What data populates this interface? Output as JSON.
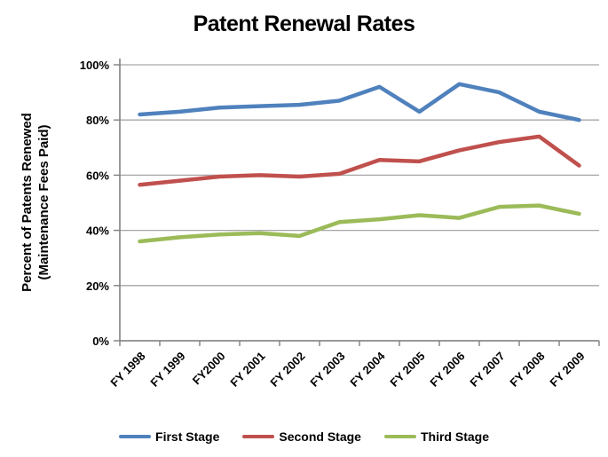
{
  "chart_data": {
    "type": "line",
    "title": "Patent Renewal Rates",
    "xlabel": "",
    "ylabel": "Percent of Patents Renewed (Maintenance Fees Paid)",
    "ylabel_lines": [
      "Percent of Patents Renewed",
      "(Maintenance Fees Paid)"
    ],
    "categories": [
      "FY 1998",
      "FY 1999",
      "FY2000",
      "FY 2001",
      "FY 2002",
      "FY 2003",
      "FY 2004",
      "FY 2005",
      "FY 2006",
      "FY 2007",
      "FY 2008",
      "FY 2009"
    ],
    "series": [
      {
        "name": "First Stage",
        "color": "#4F81BD",
        "values": [
          82,
          83,
          84.5,
          85,
          85.5,
          87,
          92,
          83,
          93,
          90,
          83,
          80
        ]
      },
      {
        "name": "Second Stage",
        "color": "#C0504D",
        "values": [
          56.5,
          58,
          59.5,
          60,
          59.5,
          60.5,
          65.5,
          65,
          69,
          72,
          74,
          63.5
        ]
      },
      {
        "name": "Third Stage",
        "color": "#9BBB59",
        "values": [
          36,
          37.5,
          38.5,
          39,
          38,
          43,
          44,
          45.5,
          44.5,
          48.5,
          49,
          46
        ]
      }
    ],
    "ylim": [
      0,
      100
    ],
    "yticks": [
      {
        "value": 0,
        "label": "0%"
      },
      {
        "value": 20,
        "label": "20%"
      },
      {
        "value": 40,
        "label": "40%"
      },
      {
        "value": 60,
        "label": "60%"
      },
      {
        "value": 80,
        "label": "80%"
      },
      {
        "value": 100,
        "label": "100%"
      }
    ],
    "grid": "horizontal",
    "legend_position": "bottom",
    "colors": {
      "axis": "#808080",
      "gridline": "#A6A6A6",
      "text": "#000000",
      "background": "#FFFFFF"
    }
  }
}
